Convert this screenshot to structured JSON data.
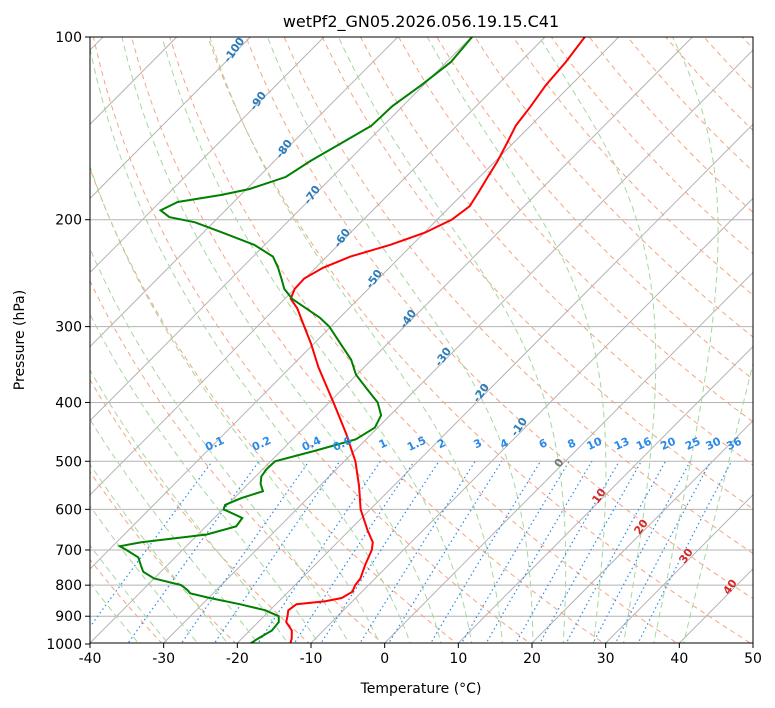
{
  "chart_data": {
    "type": "line",
    "title": "wetPf2_GN05.2026.056.19.15.C41",
    "xlabel": "Temperature (°C)",
    "ylabel": "Pressure (hPa)",
    "xlim": [
      -40,
      50
    ],
    "ylim": [
      1050,
      100
    ],
    "y_scale": "log",
    "grid": true,
    "x_ticks": [
      -40,
      -30,
      -20,
      -10,
      0,
      10,
      20,
      30,
      40,
      50
    ],
    "y_ticks": [
      100,
      200,
      300,
      400,
      500,
      600,
      700,
      800,
      900,
      1000
    ],
    "series": [
      {
        "name": "",
        "color": "#ff0000",
        "points": [
          [
            1000,
            -12.7
          ],
          [
            980,
            -13.2
          ],
          [
            950,
            -14.3
          ],
          [
            920,
            -16.2
          ],
          [
            900,
            -16.8
          ],
          [
            880,
            -17.5
          ],
          [
            860,
            -17.2
          ],
          [
            850,
            -13.7
          ],
          [
            840,
            -11.9
          ],
          [
            820,
            -11.3
          ],
          [
            800,
            -11.8
          ],
          [
            780,
            -12.0
          ],
          [
            760,
            -12.6
          ],
          [
            740,
            -13.2
          ],
          [
            700,
            -14.3
          ],
          [
            680,
            -15.2
          ],
          [
            650,
            -17.5
          ],
          [
            600,
            -21.3
          ],
          [
            550,
            -24.6
          ],
          [
            500,
            -28.5
          ],
          [
            450,
            -33.5
          ],
          [
            400,
            -39.4
          ],
          [
            350,
            -46.2
          ],
          [
            320,
            -50.4
          ],
          [
            300,
            -53.6
          ],
          [
            280,
            -57.0
          ],
          [
            270,
            -59.2
          ],
          [
            260,
            -60.0
          ],
          [
            250,
            -60.1
          ],
          [
            240,
            -59.0
          ],
          [
            230,
            -56.8
          ],
          [
            220,
            -53.0
          ],
          [
            210,
            -49.9
          ],
          [
            200,
            -48.0
          ],
          [
            190,
            -47.4
          ],
          [
            180,
            -48.1
          ],
          [
            170,
            -48.9
          ],
          [
            160,
            -49.7
          ],
          [
            150,
            -50.8
          ],
          [
            140,
            -52.0
          ],
          [
            130,
            -52.6
          ],
          [
            120,
            -53.4
          ],
          [
            110,
            -53.8
          ],
          [
            100,
            -54.6
          ]
        ]
      },
      {
        "name": "",
        "color": "#008000",
        "points": [
          [
            1000,
            -18.2
          ],
          [
            980,
            -17.8
          ],
          [
            950,
            -17.0
          ],
          [
            920,
            -17.2
          ],
          [
            900,
            -18.0
          ],
          [
            880,
            -20.6
          ],
          [
            860,
            -24.9
          ],
          [
            840,
            -29.8
          ],
          [
            825,
            -33.1
          ],
          [
            815,
            -33.9
          ],
          [
            800,
            -35.4
          ],
          [
            780,
            -40.0
          ],
          [
            760,
            -42.4
          ],
          [
            740,
            -43.7
          ],
          [
            720,
            -45.0
          ],
          [
            700,
            -47.6
          ],
          [
            690,
            -49.0
          ],
          [
            680,
            -46.6
          ],
          [
            660,
            -38.8
          ],
          [
            640,
            -35.9
          ],
          [
            620,
            -36.2
          ],
          [
            600,
            -39.9
          ],
          [
            590,
            -40.3
          ],
          [
            575,
            -39.0
          ],
          [
            560,
            -37.0
          ],
          [
            545,
            -38.3
          ],
          [
            530,
            -39.2
          ],
          [
            515,
            -39.5
          ],
          [
            500,
            -39.4
          ],
          [
            480,
            -35.3
          ],
          [
            460,
            -31.4
          ],
          [
            440,
            -30.4
          ],
          [
            420,
            -31.2
          ],
          [
            400,
            -33.4
          ],
          [
            380,
            -36.7
          ],
          [
            360,
            -40.1
          ],
          [
            340,
            -42.8
          ],
          [
            320,
            -46.4
          ],
          [
            300,
            -50.2
          ],
          [
            290,
            -52.7
          ],
          [
            280,
            -55.8
          ],
          [
            270,
            -59.0
          ],
          [
            260,
            -61.4
          ],
          [
            250,
            -63.2
          ],
          [
            240,
            -65.1
          ],
          [
            230,
            -67.3
          ],
          [
            220,
            -71.4
          ],
          [
            210,
            -77.4
          ],
          [
            202,
            -82.5
          ],
          [
            198,
            -86.7
          ],
          [
            193,
            -88.8
          ],
          [
            187,
            -87.6
          ],
          [
            182,
            -82.6
          ],
          [
            178,
            -79.6
          ],
          [
            170,
            -76.3
          ],
          [
            160,
            -75.1
          ],
          [
            150,
            -73.4
          ],
          [
            140,
            -71.6
          ],
          [
            130,
            -71.4
          ],
          [
            120,
            -70.3
          ],
          [
            110,
            -69.4
          ],
          [
            100,
            -69.9
          ]
        ]
      }
    ],
    "dry_adiabat_labels": [
      "-100",
      "-90",
      "-80",
      "-70",
      "-60",
      "-50",
      "-40",
      "-30",
      "-20",
      "-10"
    ],
    "moist_adiabat_labels": [
      "0",
      "10",
      "20",
      "30",
      "40"
    ],
    "mixing_ratio_labels": [
      "0.1",
      "0.2",
      "0.4",
      "0.6",
      "1",
      "1.5",
      "2",
      "3",
      "4",
      "6",
      "8",
      "10",
      "13",
      "16",
      "20",
      "25",
      "30",
      "36"
    ],
    "colors": {
      "isotherm": "#b3b3b3",
      "isobar": "#b3b3b3",
      "dry_adiabat": "#f4a582",
      "moist_adiabat": "#a6d7a0",
      "mixing_ratio": "#2b8ae8",
      "dry_label": "#2b7bba",
      "moist_label": "#d62728",
      "frame": "#000000"
    }
  }
}
